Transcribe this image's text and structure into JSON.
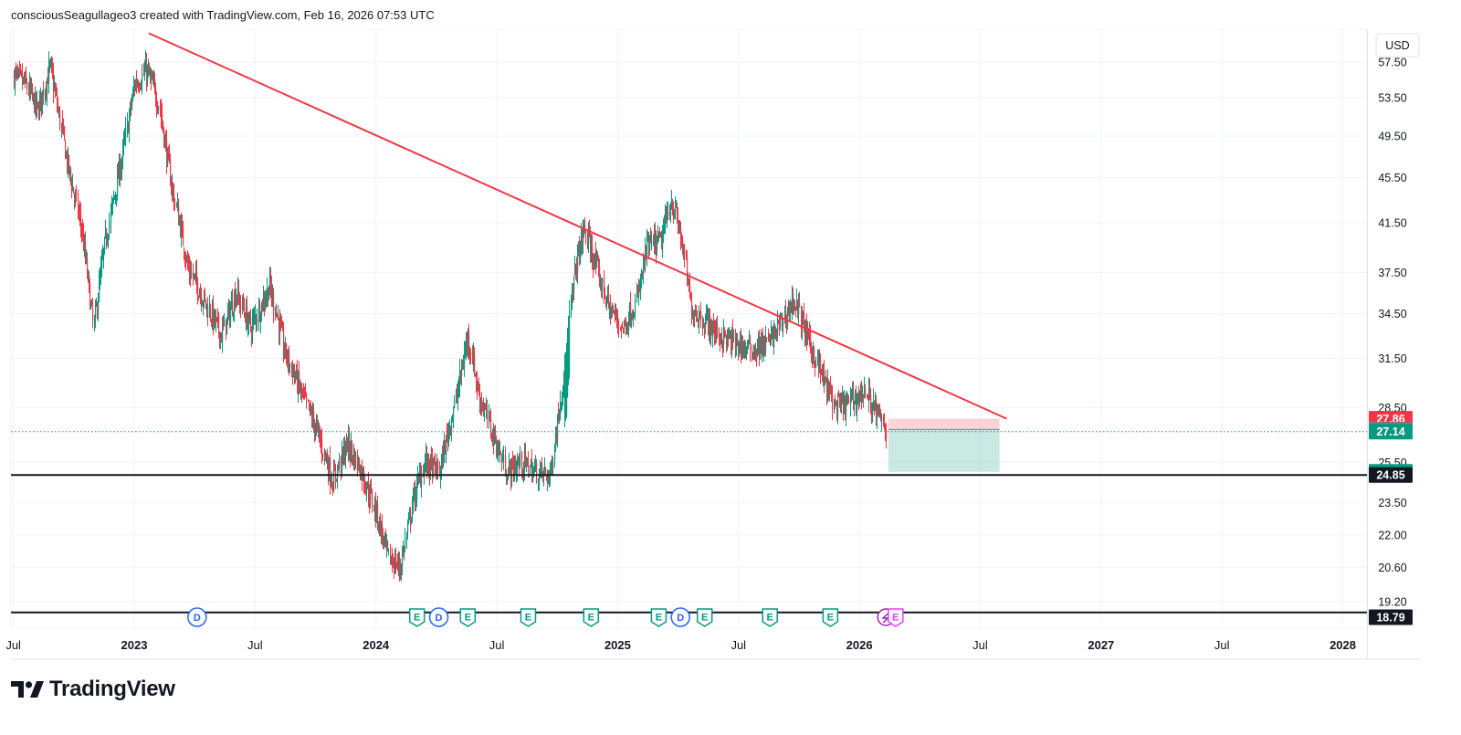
{
  "header": {
    "attribution": "consciousSeagullageo3 created with TradingView.com, Feb 16, 2026 07:53 UTC"
  },
  "logo": {
    "text": "TradingView"
  },
  "currency_button": {
    "label": "USD"
  },
  "colors": {
    "up": "#089981",
    "down": "#f23645",
    "trendline": "#f23645",
    "grid": "#f0f3fa",
    "text": "#131722"
  },
  "chart_data": {
    "type": "candlestick",
    "title": "",
    "xlabel": "",
    "ylabel": "",
    "yscale": "log",
    "ylim": [
      18.2,
      61.5
    ],
    "xlim": [
      2022.49,
      2028.1
    ],
    "grid": true,
    "y_ticks": [
      "57.50",
      "53.50",
      "49.50",
      "45.50",
      "41.50",
      "37.50",
      "34.50",
      "31.50",
      "28.50",
      "25.50",
      "23.50",
      "22.00",
      "20.60",
      "19.20"
    ],
    "x_ticks": [
      {
        "t": 2022.5,
        "label": "Jul",
        "bold": false
      },
      {
        "t": 2023.0,
        "label": "2023",
        "bold": true
      },
      {
        "t": 2023.5,
        "label": "Jul",
        "bold": false
      },
      {
        "t": 2024.0,
        "label": "2024",
        "bold": true
      },
      {
        "t": 2024.5,
        "label": "Jul",
        "bold": false
      },
      {
        "t": 2025.0,
        "label": "2025",
        "bold": true
      },
      {
        "t": 2025.5,
        "label": "Jul",
        "bold": false
      },
      {
        "t": 2026.0,
        "label": "2026",
        "bold": true
      },
      {
        "t": 2026.5,
        "label": "Jul",
        "bold": false
      },
      {
        "t": 2027.0,
        "label": "2027",
        "bold": true
      },
      {
        "t": 2027.5,
        "label": "Jul",
        "bold": false
      },
      {
        "t": 2028.0,
        "label": "2028",
        "bold": true
      }
    ],
    "price_path": [
      [
        2022.5,
        56.0
      ],
      [
        2022.55,
        55.0
      ],
      [
        2022.6,
        52.0
      ],
      [
        2022.65,
        57.0
      ],
      [
        2022.72,
        47.0
      ],
      [
        2022.78,
        41.0
      ],
      [
        2022.83,
        33.5
      ],
      [
        2022.88,
        40.0
      ],
      [
        2022.95,
        47.5
      ],
      [
        2023.0,
        55.0
      ],
      [
        2023.05,
        56.5
      ],
      [
        2023.1,
        53.0
      ],
      [
        2023.13,
        48.0
      ],
      [
        2023.16,
        44.0
      ],
      [
        2023.22,
        38.0
      ],
      [
        2023.3,
        35.0
      ],
      [
        2023.36,
        33.0
      ],
      [
        2023.42,
        36.0
      ],
      [
        2023.48,
        33.5
      ],
      [
        2023.56,
        36.5
      ],
      [
        2023.62,
        32.0
      ],
      [
        2023.7,
        29.0
      ],
      [
        2023.76,
        27.0
      ],
      [
        2023.82,
        24.5
      ],
      [
        2023.88,
        26.5
      ],
      [
        2023.94,
        25.0
      ],
      [
        2024.0,
        23.0
      ],
      [
        2024.05,
        21.0
      ],
      [
        2024.1,
        20.6
      ],
      [
        2024.15,
        23.5
      ],
      [
        2024.2,
        25.5
      ],
      [
        2024.26,
        25.0
      ],
      [
        2024.33,
        29.0
      ],
      [
        2024.38,
        33.0
      ],
      [
        2024.42,
        29.5
      ],
      [
        2024.48,
        27.0
      ],
      [
        2024.54,
        25.0
      ],
      [
        2024.6,
        25.5
      ],
      [
        2024.66,
        25.0
      ],
      [
        2024.72,
        24.8
      ],
      [
        2024.78,
        31.0
      ],
      [
        2024.82,
        37.5
      ],
      [
        2024.86,
        41.0
      ],
      [
        2024.9,
        38.5
      ],
      [
        2024.96,
        35.0
      ],
      [
        2025.02,
        33.5
      ],
      [
        2025.08,
        35.5
      ],
      [
        2025.12,
        39.5
      ],
      [
        2025.18,
        40.0
      ],
      [
        2025.22,
        43.5
      ],
      [
        2025.26,
        40.5
      ],
      [
        2025.3,
        35.0
      ],
      [
        2025.36,
        34.0
      ],
      [
        2025.42,
        33.0
      ],
      [
        2025.48,
        32.5
      ],
      [
        2025.55,
        32.0
      ],
      [
        2025.62,
        32.5
      ],
      [
        2025.68,
        34.0
      ],
      [
        2025.73,
        35.5
      ],
      [
        2025.78,
        33.0
      ],
      [
        2025.84,
        30.5
      ],
      [
        2025.9,
        28.5
      ],
      [
        2025.96,
        28.8
      ],
      [
        2026.02,
        29.5
      ],
      [
        2026.07,
        28.2
      ],
      [
        2026.11,
        27.14
      ]
    ],
    "trendline": [
      [
        2023.06,
        61.0
      ],
      [
        2026.61,
        27.86
      ]
    ],
    "support_lines": [
      24.85,
      18.79
    ],
    "last_price_line": 27.14,
    "position": {
      "t_start": 2026.12,
      "t_end": 2026.58,
      "stop": 27.86,
      "entry": 27.26,
      "target": 25.01
    },
    "price_labels": [
      {
        "value": 27.86,
        "text": "27.86",
        "color": "#f23645"
      },
      {
        "value": 27.26,
        "text": "27.26",
        "color": "#787b86"
      },
      {
        "value": 27.14,
        "text": "27.14",
        "color": "#089981"
      },
      {
        "value": 25.01,
        "text": "25.01",
        "color": "#089981"
      },
      {
        "value": 24.85,
        "text": "24.85",
        "color": "#131722"
      },
      {
        "value": 18.79,
        "text": "18.79",
        "color": "#131722"
      }
    ],
    "events": [
      {
        "t": 2023.26,
        "type": "D"
      },
      {
        "t": 2024.17,
        "type": "E"
      },
      {
        "t": 2024.26,
        "type": "D"
      },
      {
        "t": 2024.38,
        "type": "E"
      },
      {
        "t": 2024.63,
        "type": "E"
      },
      {
        "t": 2024.89,
        "type": "E"
      },
      {
        "t": 2025.17,
        "type": "E"
      },
      {
        "t": 2025.26,
        "type": "D"
      },
      {
        "t": 2025.36,
        "type": "E"
      },
      {
        "t": 2025.63,
        "type": "E"
      },
      {
        "t": 2025.88,
        "type": "E"
      },
      {
        "t": 2026.11,
        "type": "S"
      },
      {
        "t": 2026.15,
        "type": "E",
        "future": true
      }
    ]
  }
}
